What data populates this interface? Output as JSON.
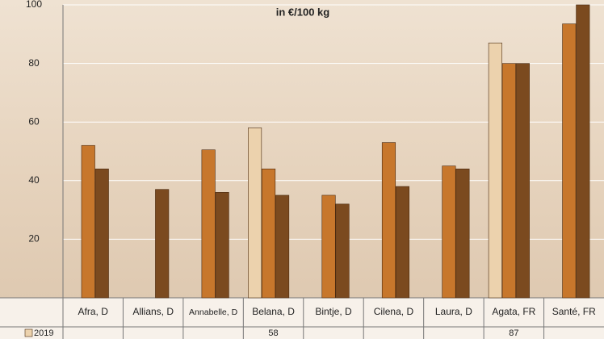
{
  "chart_data": {
    "type": "bar",
    "subtitle": "in €/100 kg",
    "categories": [
      "Afra, D",
      "Allians, D",
      "Annabelle, D",
      "Belana, D",
      "Bintje, D",
      "Cilena, D",
      "Laura, D",
      "Agata, FR",
      "Santé, FR"
    ],
    "series": [
      {
        "name": "2019",
        "color": "#ecd2ad",
        "values": [
          null,
          null,
          null,
          58,
          null,
          null,
          null,
          87,
          null
        ]
      },
      {
        "color": "#c7772c",
        "values": [
          52,
          null,
          50.5,
          44,
          35,
          53,
          45,
          80,
          93.5
        ]
      },
      {
        "color": "#7b4a1f",
        "values": [
          44,
          37,
          36,
          35,
          32,
          38,
          44,
          80,
          100
        ]
      }
    ],
    "ylim": [
      0,
      100
    ],
    "yticks": [
      {
        "value": 0,
        "label": "-"
      },
      20,
      40,
      60,
      80,
      100
    ],
    "grid": true
  }
}
